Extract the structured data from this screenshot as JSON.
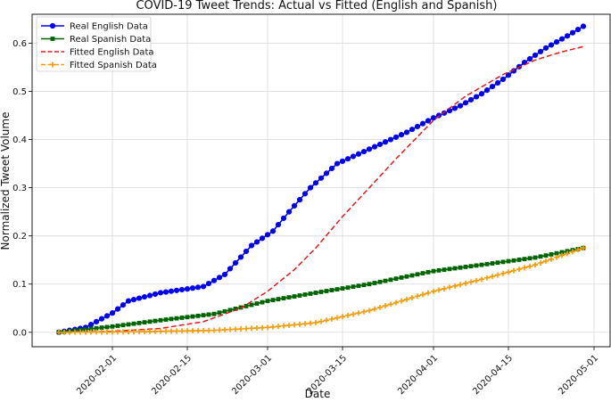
{
  "chart_data": {
    "type": "line",
    "title": "COVID-19 Tweet Trends: Actual vs Fitted (English and Spanish)",
    "xlabel": "Date",
    "ylabel": "Normalized Tweet Volume",
    "x_start": "2020-01-22",
    "x_end": "2020-04-29",
    "xlim": [
      "2020-01-17",
      "2020-05-04"
    ],
    "ylim": [
      -0.03,
      0.66
    ],
    "x_tick_labels": [
      "2020-02-01",
      "2020-02-15",
      "2020-03-01",
      "2020-03-15",
      "2020-04-01",
      "2020-04-15",
      "2020-05-01"
    ],
    "y_tick_values": [
      0.0,
      0.1,
      0.2,
      0.3,
      0.4,
      0.5,
      0.6
    ],
    "y_tick_labels": [
      "0.0",
      "0.1",
      "0.2",
      "0.3",
      "0.4",
      "0.5",
      "0.6"
    ],
    "grid": true,
    "legend_position": "top-left",
    "series": [
      {
        "name": "Real English Data",
        "color": "#0000ff",
        "line_style": "solid",
        "marker": "circle",
        "points": [
          [
            "2020-01-22",
            0.0
          ],
          [
            "2020-01-27",
            0.01
          ],
          [
            "2020-02-01",
            0.04
          ],
          [
            "2020-02-04",
            0.065
          ],
          [
            "2020-02-10",
            0.082
          ],
          [
            "2020-02-15",
            0.09
          ],
          [
            "2020-02-18",
            0.095
          ],
          [
            "2020-02-22",
            0.12
          ],
          [
            "2020-02-27",
            0.18
          ],
          [
            "2020-03-02",
            0.21
          ],
          [
            "2020-03-05",
            0.25
          ],
          [
            "2020-03-09",
            0.3
          ],
          [
            "2020-03-14",
            0.35
          ],
          [
            "2020-03-18",
            0.37
          ],
          [
            "2020-03-22",
            0.39
          ],
          [
            "2020-03-27",
            0.415
          ],
          [
            "2020-04-01",
            0.445
          ],
          [
            "2020-04-06",
            0.47
          ],
          [
            "2020-04-10",
            0.495
          ],
          [
            "2020-04-14",
            0.525
          ],
          [
            "2020-04-18",
            0.56
          ],
          [
            "2020-04-22",
            0.59
          ],
          [
            "2020-04-26",
            0.615
          ],
          [
            "2020-04-29",
            0.635
          ]
        ]
      },
      {
        "name": "Real Spanish Data",
        "color": "#006400",
        "line_style": "solid",
        "marker": "square",
        "points": [
          [
            "2020-01-22",
            0.0
          ],
          [
            "2020-02-01",
            0.012
          ],
          [
            "2020-02-10",
            0.025
          ],
          [
            "2020-02-20",
            0.038
          ],
          [
            "2020-03-01",
            0.065
          ],
          [
            "2020-03-10",
            0.082
          ],
          [
            "2020-03-20",
            0.1
          ],
          [
            "2020-04-01",
            0.127
          ],
          [
            "2020-04-10",
            0.14
          ],
          [
            "2020-04-20",
            0.155
          ],
          [
            "2020-04-29",
            0.175
          ]
        ]
      },
      {
        "name": "Fitted English Data",
        "color": "#e41a1c",
        "line_style": "dashed",
        "marker": "none",
        "points": [
          [
            "2020-01-22",
            0.0
          ],
          [
            "2020-02-01",
            0.002
          ],
          [
            "2020-02-10",
            0.008
          ],
          [
            "2020-02-18",
            0.022
          ],
          [
            "2020-02-25",
            0.05
          ],
          [
            "2020-03-01",
            0.085
          ],
          [
            "2020-03-06",
            0.13
          ],
          [
            "2020-03-10",
            0.175
          ],
          [
            "2020-03-15",
            0.24
          ],
          [
            "2020-03-20",
            0.3
          ],
          [
            "2020-03-25",
            0.36
          ],
          [
            "2020-04-01",
            0.44
          ],
          [
            "2020-04-07",
            0.49
          ],
          [
            "2020-04-14",
            0.535
          ],
          [
            "2020-04-20",
            0.565
          ],
          [
            "2020-04-25",
            0.582
          ],
          [
            "2020-04-29",
            0.593
          ]
        ]
      },
      {
        "name": "Fitted Spanish Data",
        "color": "#ff9900",
        "line_style": "dashed",
        "marker": "plus",
        "points": [
          [
            "2020-01-22",
            0.0
          ],
          [
            "2020-02-05",
            0.001
          ],
          [
            "2020-02-20",
            0.004
          ],
          [
            "2020-03-01",
            0.01
          ],
          [
            "2020-03-10",
            0.02
          ],
          [
            "2020-03-20",
            0.045
          ],
          [
            "2020-04-01",
            0.085
          ],
          [
            "2020-04-10",
            0.11
          ],
          [
            "2020-04-20",
            0.14
          ],
          [
            "2020-04-29",
            0.175
          ]
        ]
      }
    ]
  }
}
